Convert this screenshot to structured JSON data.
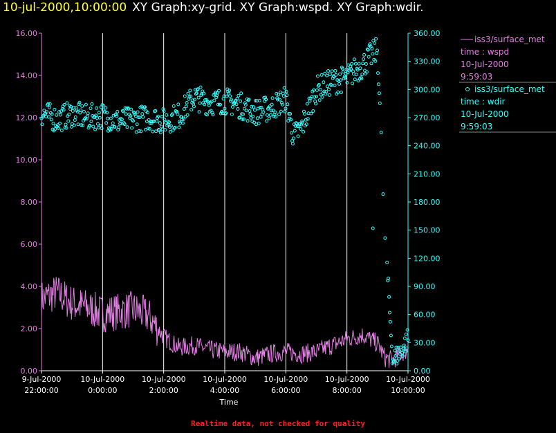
{
  "header": {
    "datetime": "10-jul-2000,10:00:00",
    "graphs": "XY Graph:xy-grid.  XY Graph:wspd.  XY Graph:wdir."
  },
  "footer": {
    "note": "Realtime data, not checked for quality"
  },
  "colors": {
    "wspd": "#e080e0",
    "wdir": "#33ffff",
    "grid": "#ffffff",
    "title_date": "#ffff33",
    "footer": "#ff2020"
  },
  "legend": [
    {
      "marker": "line",
      "name": "iss3/surface_met",
      "var": "time : wspd",
      "date": "10-Jul-2000",
      "time": "9:59:03",
      "color": "#e080e0"
    },
    {
      "marker": "circle",
      "name": "iss3/surface_met",
      "var": "time : wdir",
      "date": "10-Jul-2000",
      "time": "9:59:03",
      "color": "#33ffff"
    }
  ],
  "chart_data": {
    "type": "line",
    "xlabel": "Time",
    "x_range": [
      "9-Jul-2000 22:00:00",
      "10-Jul-2000 10:00:00"
    ],
    "x_ticks": [
      {
        "date": "9-Jul-2000",
        "time": "22:00:00",
        "hours": 0
      },
      {
        "date": "10-Jul-2000",
        "time": "0:00:00",
        "hours": 2
      },
      {
        "date": "10-Jul-2000",
        "time": "2:00:00",
        "hours": 4
      },
      {
        "date": "10-Jul-2000",
        "time": "4:00:00",
        "hours": 6
      },
      {
        "date": "10-Jul-2000",
        "time": "6:00:00",
        "hours": 8
      },
      {
        "date": "10-Jul-2000",
        "time": "8:00:00",
        "hours": 10
      },
      {
        "date": "10-Jul-2000",
        "time": "10:00:00",
        "hours": 12
      }
    ],
    "y_left": {
      "range": [
        0,
        16
      ],
      "ticks": [
        "0.00",
        "2.00",
        "4.00",
        "6.00",
        "8.00",
        "10.00",
        "12.00",
        "14.00",
        "16.00"
      ]
    },
    "y_right": {
      "range": [
        0,
        360
      ],
      "ticks": [
        "0.00",
        "30.00",
        "60.00",
        "90.00",
        "120.00",
        "150.00",
        "180.00",
        "210.00",
        "240.00",
        "270.00",
        "300.00",
        "330.00",
        "360.00"
      ]
    },
    "grid": "vertical",
    "legend_position": "right",
    "series": [
      {
        "name": "wspd",
        "axis": "left",
        "style": "line",
        "time_hours": [
          0,
          0.5,
          1,
          1.5,
          2,
          2.5,
          3,
          3.5,
          4,
          4.5,
          5,
          5.5,
          6,
          6.5,
          7,
          7.5,
          8,
          8.5,
          9,
          9.5,
          10,
          10.5,
          11,
          11.25,
          11.5,
          11.75,
          12
        ],
        "values": [
          3.4,
          3.7,
          3.2,
          3.0,
          2.7,
          2.8,
          2.9,
          2.6,
          1.6,
          1.1,
          1.2,
          1.0,
          0.9,
          0.9,
          0.6,
          0.8,
          0.9,
          0.8,
          0.9,
          1.2,
          1.5,
          1.7,
          1.3,
          0.6,
          0.5,
          0.8,
          1.0
        ]
      },
      {
        "name": "wdir",
        "axis": "right",
        "style": "scatter",
        "time_hours": [
          0,
          0.5,
          1,
          1.5,
          2,
          2.5,
          3,
          3.5,
          4,
          4.5,
          5,
          5.5,
          6,
          6.5,
          7,
          7.5,
          8,
          8.25,
          8.5,
          9,
          9.5,
          10,
          10.25,
          10.5,
          10.75,
          11,
          11.25,
          11.5,
          11.75,
          12
        ],
        "values": [
          275,
          268,
          274,
          270,
          272,
          266,
          268,
          270,
          266,
          272,
          292,
          286,
          288,
          283,
          276,
          280,
          290,
          250,
          258,
          300,
          308,
          312,
          320,
          325,
          335,
          342,
          140,
          12,
          20,
          35
        ]
      }
    ]
  }
}
